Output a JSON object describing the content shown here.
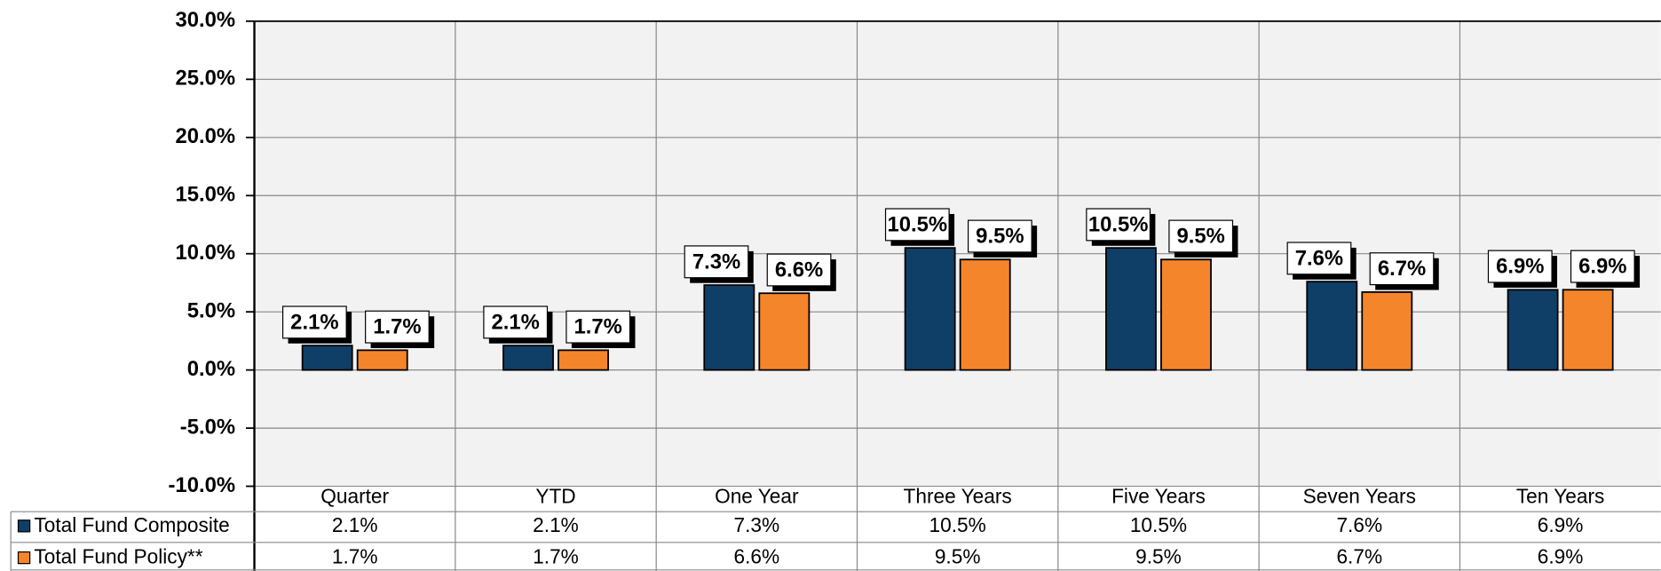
{
  "chart_data": {
    "type": "bar",
    "categories": [
      "Quarter",
      "YTD",
      "One Year",
      "Three Years",
      "Five Years",
      "Seven Years",
      "Ten Years"
    ],
    "series": [
      {
        "name": "Total Fund Composite",
        "color": "#0f3f66",
        "values": [
          2.1,
          2.1,
          7.3,
          10.5,
          10.5,
          7.6,
          6.9
        ],
        "value_labels": [
          "2.1%",
          "2.1%",
          "7.3%",
          "10.5%",
          "10.5%",
          "7.6%",
          "6.9%"
        ]
      },
      {
        "name": "Total Fund Policy**",
        "color": "#f5852a",
        "values": [
          1.7,
          1.7,
          6.6,
          9.5,
          9.5,
          6.7,
          6.9
        ],
        "value_labels": [
          "1.7%",
          "1.7%",
          "6.6%",
          "9.5%",
          "9.5%",
          "6.7%",
          "6.9%"
        ]
      }
    ],
    "ylim": [
      -10,
      30
    ],
    "yticks": [
      {
        "value": -10,
        "label": "-10.0%"
      },
      {
        "value": -5,
        "label": "-5.0%"
      },
      {
        "value": 0,
        "label": "0.0%"
      },
      {
        "value": 5,
        "label": "5.0%"
      },
      {
        "value": 10,
        "label": "10.0%"
      },
      {
        "value": 15,
        "label": "15.0%"
      },
      {
        "value": 20,
        "label": "20.0%"
      },
      {
        "value": 25,
        "label": "25.0%"
      },
      {
        "value": 30,
        "label": "30.0%"
      }
    ],
    "grid": true
  }
}
